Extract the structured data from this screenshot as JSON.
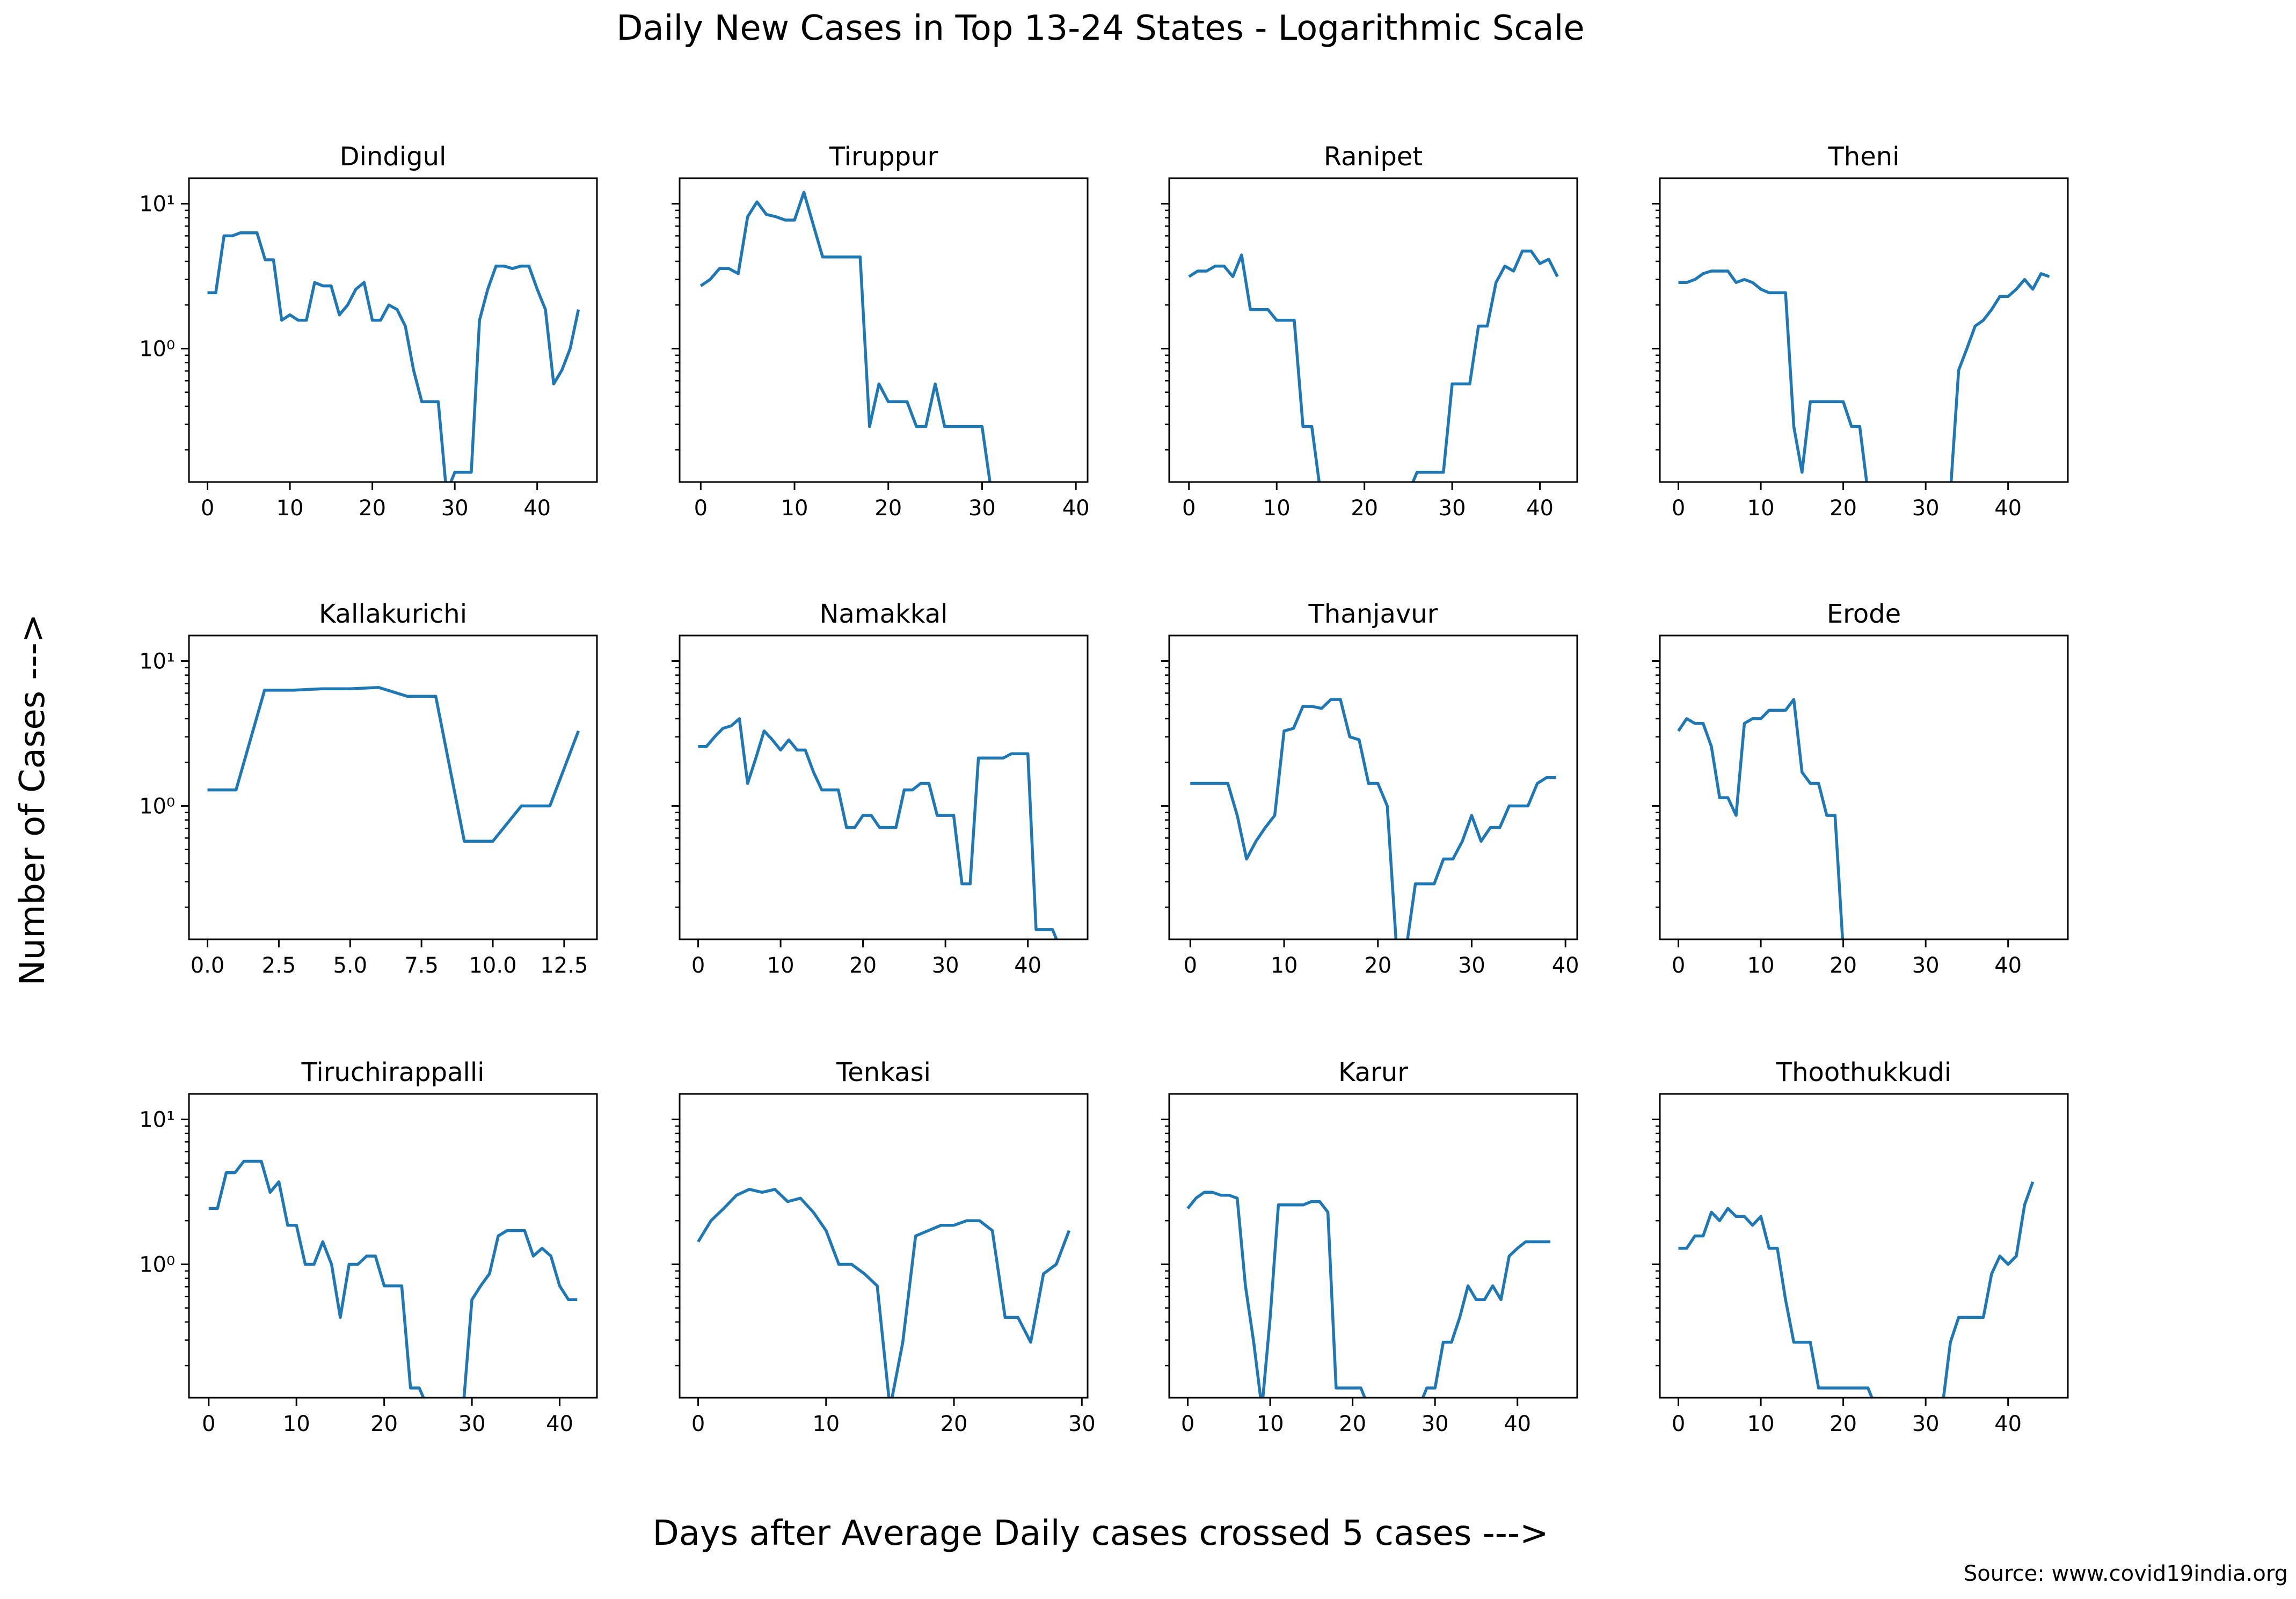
{
  "figure": {
    "title": "Daily New Cases in Top 13-24 States - Logarithmic Scale",
    "xlabel": "Days after Average Daily cases crossed 5 cases --->",
    "ylabel": "Number of Cases --->",
    "source": "Source: www.covid19india.org",
    "line_color": "#1f77b4"
  },
  "chart_data": [
    {
      "type": "line",
      "title": "Dindigul",
      "yscale": "log",
      "ylim": [
        0.12,
        15
      ],
      "xlim": [
        -2.25,
        47.25
      ],
      "xticks": [
        0,
        10,
        20,
        30,
        40
      ],
      "xtick_labels": [
        "0",
        "10",
        "20",
        "30",
        "40"
      ],
      "yticks": [
        1,
        10
      ],
      "ytick_labels": [
        "10⁰",
        "10¹"
      ],
      "x": [
        0,
        1,
        2,
        3,
        4,
        5,
        6,
        7,
        8,
        9,
        10,
        11,
        12,
        13,
        14,
        15,
        16,
        17,
        18,
        19,
        20,
        21,
        22,
        23,
        24,
        25,
        26,
        27,
        28,
        29,
        30,
        31,
        32,
        33,
        34,
        35,
        36,
        37,
        38,
        39,
        40,
        41,
        42,
        43,
        44,
        45
      ],
      "y": [
        2.43,
        2.43,
        6,
        6,
        6.3,
        6.3,
        6.3,
        4.1,
        4.1,
        1.57,
        1.71,
        1.57,
        1.57,
        2.86,
        2.71,
        2.71,
        1.71,
        2,
        2.57,
        2.86,
        1.57,
        1.57,
        2,
        1.86,
        1.43,
        0.71,
        0.43,
        0.43,
        0.43,
        0,
        0.14,
        0.14,
        0.14,
        1.57,
        2.57,
        3.71,
        3.71,
        3.57,
        3.71,
        3.71,
        2.57,
        1.86,
        0.57,
        0.71,
        1,
        1.86
      ]
    },
    {
      "type": "line",
      "title": "Tiruppur",
      "yscale": "log",
      "ylim": [
        0.12,
        15
      ],
      "xlim": [
        -2.25,
        41.25
      ],
      "xticks": [
        0,
        10,
        20,
        30,
        40
      ],
      "xtick_labels": [
        "0",
        "10",
        "20",
        "30",
        "40"
      ],
      "yticks": [
        1,
        10
      ],
      "ytick_labels": [
        "",
        ""
      ],
      "x": [
        0,
        1,
        2,
        3,
        4,
        5,
        6,
        7,
        8,
        9,
        10,
        11,
        12,
        13,
        14,
        15,
        16,
        17,
        18,
        19,
        20,
        21,
        22,
        23,
        24,
        25,
        26,
        27,
        28,
        29,
        30,
        31
      ],
      "y": [
        2.71,
        3,
        3.57,
        3.57,
        3.29,
        8.14,
        10.3,
        8.43,
        8.14,
        7.71,
        7.71,
        12,
        7.14,
        4.29,
        4.29,
        4.29,
        4.29,
        4.29,
        0.29,
        0.57,
        0.43,
        0.43,
        0.43,
        0.29,
        0.29,
        0.57,
        0.29,
        0.29,
        0.29,
        0.29,
        0.29,
        0
      ]
    },
    {
      "type": "line",
      "title": "Ranipet",
      "yscale": "log",
      "ylim": [
        0.12,
        15
      ],
      "xlim": [
        -2.25,
        44.25
      ],
      "xticks": [
        0,
        10,
        20,
        30,
        40
      ],
      "xtick_labels": [
        "0",
        "10",
        "20",
        "30",
        "40"
      ],
      "yticks": [
        1,
        10
      ],
      "ytick_labels": [
        "",
        ""
      ],
      "x": [
        0,
        1,
        2,
        3,
        4,
        5,
        6,
        7,
        8,
        9,
        10,
        11,
        12,
        13,
        14,
        15,
        16,
        17,
        18,
        19,
        20,
        21,
        22,
        23,
        24,
        25,
        26,
        27,
        28,
        29,
        30,
        31,
        32,
        33,
        34,
        35,
        36,
        37,
        38,
        39,
        40,
        41,
        42
      ],
      "y": [
        3.14,
        3.43,
        3.43,
        3.71,
        3.71,
        3.14,
        4.43,
        1.86,
        1.86,
        1.86,
        1.57,
        1.57,
        1.57,
        0.29,
        0.29,
        0,
        0,
        0,
        0,
        0,
        0,
        0,
        0,
        0,
        0,
        0,
        0.14,
        0.14,
        0.14,
        0.14,
        0.57,
        0.57,
        0.57,
        1.43,
        1.43,
        2.86,
        3.71,
        3.43,
        4.71,
        4.71,
        3.86,
        4.14,
        3.14
      ]
    },
    {
      "type": "line",
      "title": "Theni",
      "yscale": "log",
      "ylim": [
        0.12,
        15
      ],
      "xlim": [
        -2.25,
        47.25
      ],
      "xticks": [
        0,
        10,
        20,
        30,
        40
      ],
      "xtick_labels": [
        "0",
        "10",
        "20",
        "30",
        "40"
      ],
      "yticks": [
        1,
        10
      ],
      "ytick_labels": [
        "",
        ""
      ],
      "x": [
        0,
        1,
        2,
        3,
        4,
        5,
        6,
        7,
        8,
        9,
        10,
        11,
        12,
        13,
        14,
        15,
        16,
        17,
        18,
        19,
        20,
        21,
        22,
        23,
        24,
        25,
        26,
        27,
        28,
        29,
        30,
        31,
        32,
        33,
        34,
        35,
        36,
        37,
        38,
        39,
        40,
        41,
        42,
        43,
        44,
        45
      ],
      "y": [
        2.86,
        2.86,
        3,
        3.29,
        3.43,
        3.43,
        3.43,
        2.86,
        3,
        2.86,
        2.57,
        2.43,
        2.43,
        2.43,
        0.29,
        0.14,
        0.43,
        0.43,
        0.43,
        0.43,
        0.43,
        0.29,
        0.29,
        0,
        0,
        0,
        0,
        0,
        0,
        0,
        0,
        0,
        0,
        0,
        0.71,
        1,
        1.43,
        1.57,
        1.86,
        2.29,
        2.29,
        2.57,
        3,
        2.57,
        3.29,
        3.14
      ]
    },
    {
      "type": "line",
      "title": "Kallakurichi",
      "yscale": "log",
      "ylim": [
        0.12,
        15
      ],
      "xlim": [
        -0.65,
        13.65
      ],
      "xticks": [
        0,
        2.5,
        5,
        7.5,
        10,
        12.5
      ],
      "xtick_labels": [
        "0.0",
        "2.5",
        "5.0",
        "7.5",
        "10.0",
        "12.5"
      ],
      "yticks": [
        1,
        10
      ],
      "ytick_labels": [
        "10⁰",
        "10¹"
      ],
      "x": [
        0,
        1,
        2,
        3,
        4,
        5,
        6,
        7,
        8,
        9,
        10,
        11,
        12,
        13
      ],
      "y": [
        1.29,
        1.29,
        6.29,
        6.29,
        6.43,
        6.43,
        6.57,
        5.71,
        5.71,
        0.57,
        0.57,
        1,
        1,
        3.29
      ]
    },
    {
      "type": "line",
      "title": "Namakkal",
      "yscale": "log",
      "ylim": [
        0.12,
        15
      ],
      "xlim": [
        -2.25,
        47.25
      ],
      "xticks": [
        0,
        10,
        20,
        30,
        40
      ],
      "xtick_labels": [
        "0",
        "10",
        "20",
        "30",
        "40"
      ],
      "yticks": [
        1,
        10
      ],
      "ytick_labels": [
        "",
        ""
      ],
      "x": [
        0,
        1,
        2,
        3,
        4,
        5,
        6,
        7,
        8,
        9,
        10,
        11,
        12,
        13,
        14,
        15,
        16,
        17,
        18,
        19,
        20,
        21,
        22,
        23,
        24,
        25,
        26,
        27,
        28,
        29,
        30,
        31,
        32,
        33,
        34,
        35,
        36,
        37,
        38,
        39,
        40,
        41,
        42,
        43,
        44
      ],
      "y": [
        2.57,
        2.57,
        3,
        3.43,
        3.57,
        4,
        1.43,
        2.14,
        3.29,
        2.86,
        2.43,
        2.86,
        2.43,
        2.43,
        1.71,
        1.29,
        1.29,
        1.29,
        0.71,
        0.71,
        0.86,
        0.86,
        0.71,
        0.71,
        0.71,
        1.29,
        1.29,
        1.43,
        1.43,
        0.86,
        0.86,
        0.86,
        0.29,
        0.29,
        2.14,
        2.14,
        2.14,
        2.14,
        2.29,
        2.29,
        2.29,
        0.14,
        0.14,
        0.14,
        0
      ]
    },
    {
      "type": "line",
      "title": "Thanjavur",
      "yscale": "log",
      "ylim": [
        0.12,
        15
      ],
      "xlim": [
        -2.25,
        41.25
      ],
      "xticks": [
        0,
        10,
        20,
        30,
        40
      ],
      "xtick_labels": [
        "0",
        "10",
        "20",
        "30",
        "40"
      ],
      "yticks": [
        1,
        10
      ],
      "ytick_labels": [
        "",
        ""
      ],
      "x": [
        0,
        1,
        2,
        3,
        4,
        5,
        6,
        7,
        8,
        9,
        10,
        11,
        12,
        13,
        14,
        15,
        16,
        17,
        18,
        19,
        20,
        21,
        22,
        23,
        24,
        25,
        26,
        27,
        28,
        29,
        30,
        31,
        32,
        33,
        34,
        35,
        36,
        37,
        38,
        39
      ],
      "y": [
        1.43,
        1.43,
        1.43,
        1.43,
        1.43,
        0.86,
        0.43,
        0.57,
        0.71,
        0.86,
        3.29,
        3.43,
        4.86,
        4.86,
        4.71,
        5.43,
        5.43,
        3,
        2.86,
        1.43,
        1.43,
        1,
        0,
        0,
        0.29,
        0.29,
        0.29,
        0.43,
        0.43,
        0.57,
        0.86,
        0.57,
        0.71,
        0.71,
        1,
        1,
        1,
        1.43,
        1.57,
        1.57
      ]
    },
    {
      "type": "line",
      "title": "Erode",
      "yscale": "log",
      "ylim": [
        0.12,
        15
      ],
      "xlim": [
        -2.25,
        47.25
      ],
      "xticks": [
        0,
        10,
        20,
        30,
        40
      ],
      "xtick_labels": [
        "0",
        "10",
        "20",
        "30",
        "40"
      ],
      "yticks": [
        1,
        10
      ],
      "ytick_labels": [
        "",
        ""
      ],
      "x": [
        0,
        1,
        2,
        3,
        4,
        5,
        6,
        7,
        8,
        9,
        10,
        11,
        12,
        13,
        14,
        15,
        16,
        17,
        18,
        19,
        20
      ],
      "y": [
        3.29,
        4,
        3.71,
        3.71,
        2.57,
        1.14,
        1.14,
        0.86,
        3.71,
        4,
        4,
        4.57,
        4.57,
        4.57,
        5.43,
        1.71,
        1.43,
        1.43,
        0.86,
        0.86,
        0
      ]
    },
    {
      "type": "line",
      "title": "Tiruchirappalli",
      "yscale": "log",
      "ylim": [
        0.12,
        15
      ],
      "xlim": [
        -2.25,
        44.25
      ],
      "xticks": [
        0,
        10,
        20,
        30,
        40
      ],
      "xtick_labels": [
        "0",
        "10",
        "20",
        "30",
        "40"
      ],
      "yticks": [
        1,
        10
      ],
      "ytick_labels": [
        "10⁰",
        "10¹"
      ],
      "x": [
        0,
        1,
        2,
        3,
        4,
        5,
        6,
        7,
        8,
        9,
        10,
        11,
        12,
        13,
        14,
        15,
        16,
        17,
        18,
        19,
        20,
        21,
        22,
        23,
        24,
        25,
        26,
        27,
        28,
        29,
        30,
        31,
        32,
        33,
        34,
        35,
        36,
        37,
        38,
        39,
        40,
        41,
        42
      ],
      "y": [
        2.43,
        2.43,
        4.29,
        4.29,
        5.14,
        5.14,
        5.14,
        3.14,
        3.71,
        1.86,
        1.86,
        1,
        1,
        1.43,
        1,
        0.43,
        1,
        1,
        1.14,
        1.14,
        0.71,
        0.71,
        0.71,
        0.14,
        0.14,
        0,
        0,
        0,
        0,
        0,
        0.57,
        0.71,
        0.86,
        1.57,
        1.71,
        1.71,
        1.71,
        1.14,
        1.29,
        1.14,
        0.71,
        0.57,
        0.57
      ]
    },
    {
      "type": "line",
      "title": "Tenkasi",
      "yscale": "log",
      "ylim": [
        0.12,
        15
      ],
      "xlim": [
        -1.45,
        30.45
      ],
      "xticks": [
        0,
        10,
        20,
        30
      ],
      "xtick_labels": [
        "0",
        "10",
        "20",
        "30"
      ],
      "yticks": [
        1,
        10
      ],
      "ytick_labels": [
        "",
        ""
      ],
      "x": [
        0,
        1,
        2,
        3,
        4,
        5,
        6,
        7,
        8,
        9,
        10,
        11,
        12,
        13,
        14,
        15,
        16,
        17,
        18,
        19,
        20,
        21,
        22,
        23,
        24,
        25,
        26,
        27,
        28,
        29
      ],
      "y": [
        1.43,
        2,
        2.43,
        3,
        3.29,
        3.14,
        3.29,
        2.71,
        2.86,
        2.29,
        1.71,
        1,
        1,
        0.86,
        0.71,
        0,
        0.29,
        1.57,
        1.71,
        1.86,
        1.86,
        2,
        2,
        1.71,
        0.43,
        0.43,
        0.29,
        0.86,
        1,
        1.71
      ]
    },
    {
      "type": "line",
      "title": "Karur",
      "yscale": "log",
      "ylim": [
        0.12,
        15
      ],
      "xlim": [
        -2.25,
        47.25
      ],
      "xticks": [
        0,
        10,
        20,
        30,
        40
      ],
      "xtick_labels": [
        "0",
        "10",
        "20",
        "30",
        "40"
      ],
      "yticks": [
        1,
        10
      ],
      "ytick_labels": [
        "",
        ""
      ],
      "x": [
        0,
        1,
        2,
        3,
        4,
        5,
        6,
        7,
        8,
        9,
        10,
        11,
        12,
        13,
        14,
        15,
        16,
        17,
        18,
        19,
        20,
        21,
        22,
        23,
        24,
        25,
        26,
        27,
        28,
        29,
        30,
        31,
        32,
        33,
        34,
        35,
        36,
        37,
        38,
        39,
        40,
        41,
        42,
        43,
        44
      ],
      "y": [
        2.43,
        2.86,
        3.14,
        3.14,
        3,
        3,
        2.86,
        0.71,
        0.29,
        0,
        0.43,
        2.57,
        2.57,
        2.57,
        2.57,
        2.71,
        2.71,
        2.29,
        0.14,
        0.14,
        0.14,
        0.14,
        0,
        0,
        0,
        0,
        0,
        0,
        0,
        0.14,
        0.14,
        0.29,
        0.29,
        0.43,
        0.71,
        0.57,
        0.57,
        0.71,
        0.57,
        1.14,
        1.29,
        1.43,
        1.43,
        1.43,
        1.43
      ]
    },
    {
      "type": "line",
      "title": "Thoothukkudi",
      "yscale": "log",
      "ylim": [
        0.12,
        15
      ],
      "xlim": [
        -2.25,
        47.25
      ],
      "xticks": [
        0,
        10,
        20,
        30,
        40
      ],
      "xtick_labels": [
        "0",
        "10",
        "20",
        "30",
        "40"
      ],
      "yticks": [
        1,
        10
      ],
      "ytick_labels": [
        "",
        ""
      ],
      "x": [
        0,
        1,
        2,
        3,
        4,
        5,
        6,
        7,
        8,
        9,
        10,
        11,
        12,
        13,
        14,
        15,
        16,
        17,
        18,
        19,
        20,
        21,
        22,
        23,
        24,
        25,
        26,
        27,
        28,
        29,
        30,
        31,
        32,
        33,
        34,
        35,
        36,
        37,
        38,
        39,
        40,
        41,
        42,
        43
      ],
      "y": [
        1.29,
        1.29,
        1.57,
        1.57,
        2.29,
        2,
        2.43,
        2.14,
        2.14,
        1.86,
        2.14,
        1.29,
        1.29,
        0.57,
        0.29,
        0.29,
        0.29,
        0.14,
        0.14,
        0.14,
        0.14,
        0.14,
        0.14,
        0.14,
        0,
        0,
        0,
        0,
        0,
        0,
        0,
        0,
        0,
        0.29,
        0.43,
        0.43,
        0.43,
        0.43,
        0.86,
        1.14,
        1,
        1.14,
        2.57,
        3.71
      ]
    }
  ]
}
